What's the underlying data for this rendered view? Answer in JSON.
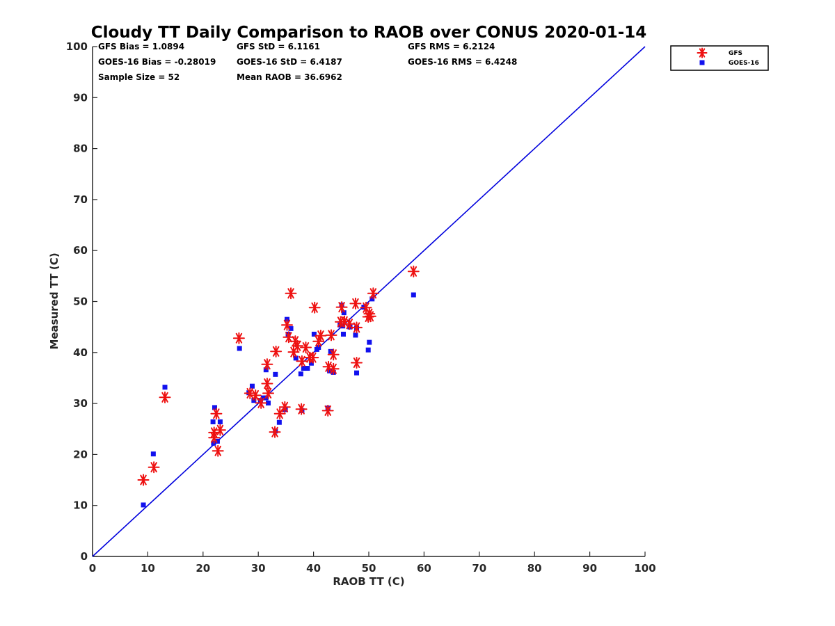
{
  "chart_data": {
    "type": "scatter",
    "title": "Cloudy TT Daily Comparison to RAOB over CONUS 2020-01-14",
    "xlabel": "RAOB TT (C)",
    "ylabel": "Measured TT (C)",
    "xlim": [
      0,
      100
    ],
    "ylim": [
      0,
      100
    ],
    "xticks": [
      0,
      10,
      20,
      30,
      40,
      50,
      60,
      70,
      80,
      90,
      100
    ],
    "yticks": [
      0,
      10,
      20,
      30,
      40,
      50,
      60,
      70,
      80,
      90,
      100
    ],
    "grid": false,
    "legend_position": "top-right outside",
    "reference_line": {
      "x": [
        0,
        100
      ],
      "y": [
        0,
        100
      ],
      "color": "#0000dd"
    },
    "stats": [
      "GFS Bias = 1.0894",
      "GFS StD = 6.1161",
      "GFS RMS = 6.2124",
      "GOES-16 Bias = -0.28019",
      "GOES-16 StD = 6.4187",
      "GOES-16 RMS = 6.4248",
      "Sample Size = 52",
      "Mean RAOB = 36.6962"
    ],
    "series": [
      {
        "name": "GFS",
        "marker": "asterisk",
        "color": "#ee1111",
        "points": [
          [
            9.2,
            15
          ],
          [
            11.1,
            17.5
          ],
          [
            13.1,
            31.2
          ],
          [
            22,
            24.3
          ],
          [
            22,
            23.3
          ],
          [
            22.4,
            28
          ],
          [
            22.7,
            20.7
          ],
          [
            23.1,
            24.8
          ],
          [
            26.5,
            42.8
          ],
          [
            28.5,
            32
          ],
          [
            29.5,
            31.6
          ],
          [
            30.5,
            30.1
          ],
          [
            31.6,
            33.9
          ],
          [
            31.6,
            37.7
          ],
          [
            31.8,
            32
          ],
          [
            33,
            24.4
          ],
          [
            33.2,
            40.2
          ],
          [
            33.9,
            28
          ],
          [
            34.8,
            29.3
          ],
          [
            35.2,
            45.4
          ],
          [
            35.5,
            43
          ],
          [
            35.9,
            51.6
          ],
          [
            36.4,
            40.1
          ],
          [
            36.7,
            42.2
          ],
          [
            37.1,
            41.3
          ],
          [
            37.8,
            28.9
          ],
          [
            37.9,
            38.3
          ],
          [
            38.6,
            41
          ],
          [
            39.3,
            39
          ],
          [
            39.9,
            39
          ],
          [
            40.2,
            48.8
          ],
          [
            40.9,
            42.2
          ],
          [
            41.3,
            43.3
          ],
          [
            42.6,
            28.6
          ],
          [
            42.7,
            37.2
          ],
          [
            43.2,
            43.4
          ],
          [
            43.6,
            39.6
          ],
          [
            43.6,
            36.8
          ],
          [
            44.9,
            46
          ],
          [
            45.1,
            48.9
          ],
          [
            45.6,
            46.1
          ],
          [
            46.5,
            45.6
          ],
          [
            47.6,
            49.6
          ],
          [
            47.8,
            38
          ],
          [
            47.8,
            44.9
          ],
          [
            49.5,
            48.8
          ],
          [
            49.9,
            47
          ],
          [
            50.1,
            47.6
          ],
          [
            50.3,
            47.1
          ],
          [
            50.8,
            51.6
          ],
          [
            58.1,
            55.9
          ]
        ]
      },
      {
        "name": "GOES-16",
        "marker": "square",
        "color": "#1111ee",
        "points": [
          [
            9.2,
            10.1
          ],
          [
            11,
            20.1
          ],
          [
            13.1,
            33.2
          ],
          [
            21.8,
            26.4
          ],
          [
            21.9,
            22.2
          ],
          [
            22.1,
            29.2
          ],
          [
            22.6,
            22.6
          ],
          [
            23.1,
            26.4
          ],
          [
            26.6,
            40.8
          ],
          [
            28.3,
            32.1
          ],
          [
            28.9,
            33.4
          ],
          [
            29.2,
            30.6
          ],
          [
            30.4,
            30.6
          ],
          [
            30.9,
            31.1
          ],
          [
            31.4,
            31.1
          ],
          [
            31.4,
            36.6
          ],
          [
            31.8,
            30.1
          ],
          [
            33.1,
            24.6
          ],
          [
            33.1,
            35.7
          ],
          [
            33.8,
            26.3
          ],
          [
            34.9,
            28.8
          ],
          [
            35.2,
            46.5
          ],
          [
            35.4,
            43.6
          ],
          [
            35.9,
            44.7
          ],
          [
            36.8,
            38.9
          ],
          [
            37.7,
            35.8
          ],
          [
            37.9,
            28.6
          ],
          [
            38.2,
            36.9
          ],
          [
            38.9,
            36.9
          ],
          [
            39.6,
            37.9
          ],
          [
            40.1,
            43.6
          ],
          [
            40.6,
            40.6
          ],
          [
            40.9,
            41
          ],
          [
            42.6,
            29.1
          ],
          [
            42.9,
            36.4
          ],
          [
            43.1,
            40.2
          ],
          [
            43.6,
            36.1
          ],
          [
            44.8,
            45.4
          ],
          [
            45.1,
            49.3
          ],
          [
            45.3,
            45.2
          ],
          [
            45.4,
            43.6
          ],
          [
            45.5,
            47.8
          ],
          [
            46.6,
            45
          ],
          [
            47.6,
            43.4
          ],
          [
            47.8,
            36
          ],
          [
            47.8,
            44.8
          ],
          [
            49.1,
            48.9
          ],
          [
            49.9,
            40.5
          ],
          [
            50.1,
            42
          ],
          [
            50.6,
            50.5
          ],
          [
            58.1,
            51.3
          ]
        ]
      }
    ]
  }
}
